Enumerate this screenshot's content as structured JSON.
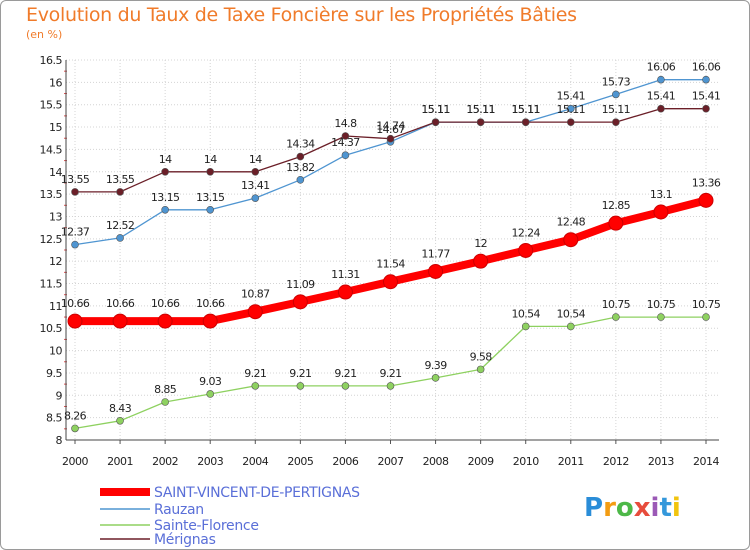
{
  "chart_data": {
    "type": "line",
    "title": "Evolution du Taux de Taxe Foncière sur les Propriétés Bâties",
    "subtitle": "(en %)",
    "x": [
      2000,
      2001,
      2002,
      2003,
      2004,
      2005,
      2006,
      2007,
      2008,
      2009,
      2010,
      2011,
      2012,
      2013,
      2014
    ],
    "ylim": [
      8,
      16.5
    ],
    "yticks": [
      "8",
      "8.5",
      "9",
      "9.5",
      "10",
      "10.5",
      "11",
      "11.5",
      "12",
      "12.5",
      "13",
      "13.5",
      "14",
      "14.5",
      "15",
      "15.5",
      "16",
      "16.5"
    ],
    "grid": true,
    "legend_position": "bottom-left",
    "series": [
      {
        "name": "SAINT-VINCENT-DE-PERTIGNAS",
        "color": "#ff0000",
        "values": [
          10.66,
          10.66,
          10.66,
          10.66,
          10.87,
          11.09,
          11.31,
          11.54,
          11.77,
          12,
          12.24,
          12.48,
          12.85,
          13.1,
          13.36
        ]
      },
      {
        "name": "Rauzan",
        "color": "#4f95d1",
        "values": [
          12.37,
          12.52,
          13.15,
          13.15,
          13.41,
          13.82,
          14.37,
          14.67,
          15.11,
          15.11,
          15.11,
          15.41,
          15.73,
          16.06,
          16.06
        ]
      },
      {
        "name": "Sainte-Florence",
        "color": "#8ed160",
        "values": [
          8.26,
          8.43,
          8.85,
          9.03,
          9.21,
          9.21,
          9.21,
          9.21,
          9.39,
          9.58,
          10.54,
          10.54,
          10.75,
          10.75,
          10.75
        ]
      },
      {
        "name": "Mérignas",
        "color": "#6b1f28",
        "values": [
          13.55,
          13.55,
          14,
          14,
          14,
          14.34,
          14.8,
          14.74,
          15.11,
          15.11,
          15.11,
          15.11,
          15.11,
          15.41,
          15.41
        ]
      }
    ]
  },
  "logo": {
    "text": "Proxiti"
  }
}
